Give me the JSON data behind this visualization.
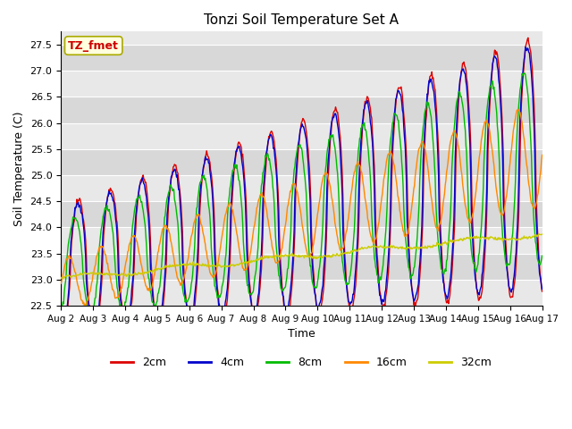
{
  "title": "Tonzi Soil Temperature Set A",
  "xlabel": "Time",
  "ylabel": "Soil Temperature (C)",
  "annotation": "TZ_fmet",
  "annotation_color": "#cc0000",
  "annotation_bg": "#ffffdd",
  "annotation_border": "#aaaa00",
  "ylim": [
    22.5,
    27.75
  ],
  "xlim": [
    0,
    720
  ],
  "x_tick_labels": [
    "Aug 2",
    "Aug 3",
    "Aug 4",
    "Aug 5",
    "Aug 6",
    "Aug 7",
    "Aug 8",
    "Aug 9",
    "Aug 10",
    "Aug 11",
    "Aug 12",
    "Aug 13",
    "Aug 14",
    "Aug 15",
    "Aug 16",
    "Aug 17"
  ],
  "x_tick_positions": [
    0,
    48,
    96,
    144,
    192,
    240,
    288,
    336,
    384,
    432,
    480,
    528,
    576,
    624,
    672,
    720
  ],
  "series_colors": [
    "#dd0000",
    "#0000cc",
    "#00bb00",
    "#ff8800",
    "#cccc00"
  ],
  "series_labels": [
    "2cm",
    "4cm",
    "8cm",
    "16cm",
    "32cm"
  ],
  "bg_color1": "#e8e8e8",
  "bg_color2": "#d8d8d8",
  "grid_color": "#ffffff",
  "fig_bg": "#ffffff",
  "linewidth": 1.0
}
